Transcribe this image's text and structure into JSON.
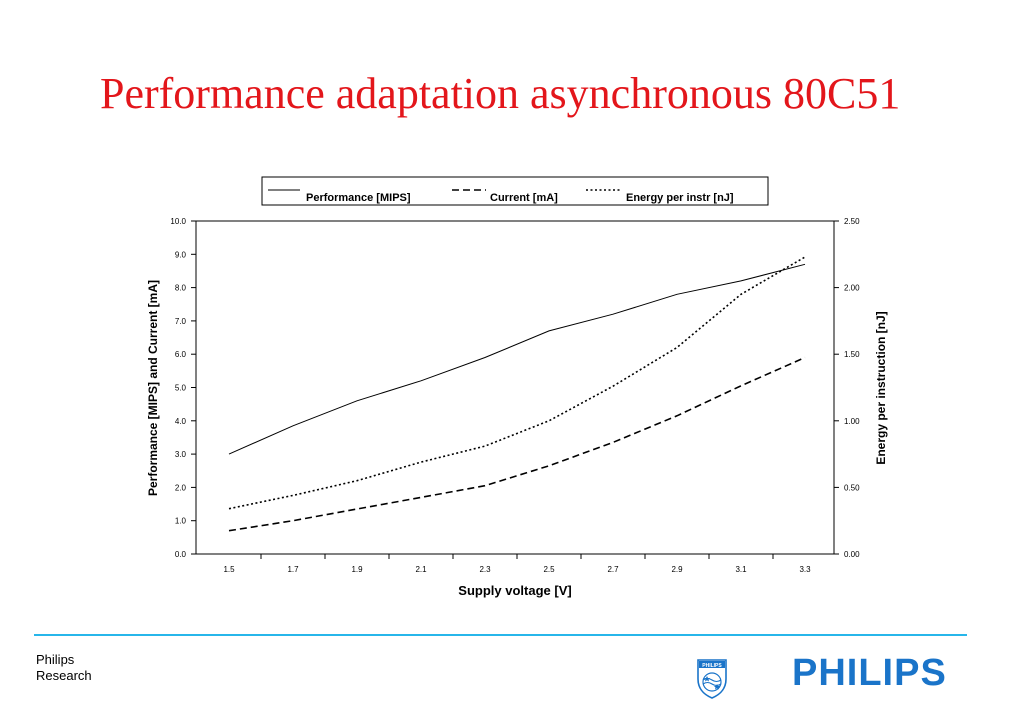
{
  "slide": {
    "title": "Performance adaptation asynchronous 80C51",
    "footer_line1": "Philips",
    "footer_line2": "Research",
    "brand_wordmark": "PHILIPS",
    "shield_label": "PHILIPS",
    "title_color": "#e3161b",
    "accent_color": "#27b6ea",
    "brand_color": "#1a74c9"
  },
  "chart_data": {
    "type": "line",
    "title": "",
    "xlabel": "Supply voltage [V]",
    "ylabel": "Performance [MIPS] and Current [mA]",
    "y2label": "Energy per instruction [nJ]",
    "x": [
      1.5,
      1.7,
      1.9,
      2.1,
      2.3,
      2.5,
      2.7,
      2.9,
      3.1,
      3.3
    ],
    "xlim": [
      1.5,
      3.3
    ],
    "ylim": [
      0,
      10
    ],
    "y2lim": [
      0,
      2.5
    ],
    "x_ticks": [
      "1.5",
      "1.7",
      "1.9",
      "2.1",
      "2.3",
      "2.5",
      "2.7",
      "2.9",
      "3.1",
      "3.3"
    ],
    "y_ticks": [
      "0.0",
      "1.0",
      "2.0",
      "3.0",
      "4.0",
      "5.0",
      "6.0",
      "7.0",
      "8.0",
      "9.0",
      "10.0"
    ],
    "y2_ticks": [
      "0.00",
      "0.50",
      "1.00",
      "1.50",
      "2.00",
      "2.50"
    ],
    "grid": false,
    "legend_position": "top",
    "series": [
      {
        "name": "Performance [MIPS]",
        "axis": "left",
        "style": "solid",
        "values": [
          3.0,
          3.85,
          4.6,
          5.2,
          5.9,
          6.7,
          7.2,
          7.8,
          8.2,
          8.7
        ]
      },
      {
        "name": "Current [mA]",
        "axis": "left",
        "style": "dashed",
        "values": [
          0.7,
          1.0,
          1.35,
          1.7,
          2.05,
          2.65,
          3.35,
          4.15,
          5.05,
          5.9
        ]
      },
      {
        "name": "Energy per instr [nJ]",
        "axis": "right",
        "style": "dotted",
        "values": [
          0.34,
          0.44,
          0.55,
          0.69,
          0.81,
          1.0,
          1.26,
          1.55,
          1.95,
          2.23
        ]
      }
    ]
  }
}
